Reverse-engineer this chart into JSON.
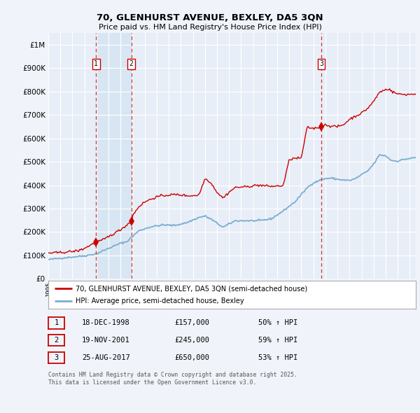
{
  "title_line1": "70, GLENHURST AVENUE, BEXLEY, DA5 3QN",
  "title_line2": "Price paid vs. HM Land Registry's House Price Index (HPI)",
  "legend_label_red": "70, GLENHURST AVENUE, BEXLEY, DA5 3QN (semi-detached house)",
  "legend_label_blue": "HPI: Average price, semi-detached house, Bexley",
  "sale_label1": "1",
  "sale_date1": "18-DEC-1998",
  "sale_price1": "£157,000",
  "sale_hpi1": "50% ↑ HPI",
  "sale_label2": "2",
  "sale_date2": "19-NOV-2001",
  "sale_price2": "£245,000",
  "sale_hpi2": "59% ↑ HPI",
  "sale_label3": "3",
  "sale_date3": "25-AUG-2017",
  "sale_price3": "£650,000",
  "sale_hpi3": "53% ↑ HPI",
  "footnote_line1": "Contains HM Land Registry data © Crown copyright and database right 2025.",
  "footnote_line2": "This data is licensed under the Open Government Licence v3.0.",
  "background_color": "#f0f4fa",
  "plot_bg_color": "#e8eef7",
  "highlight_bg_color": "#d8e6f3",
  "red_color": "#cc0000",
  "blue_color": "#7aaed0",
  "grid_color": "#ffffff",
  "dashed_line_color": "#cc3333",
  "sale1_x": 1998.96,
  "sale2_x": 2001.89,
  "sale3_x": 2017.65,
  "sale1_price": 157000,
  "sale2_price": 245000,
  "sale3_price": 650000,
  "ylim_min": 0,
  "ylim_max": 1050000,
  "xlim_min": 1995.0,
  "xlim_max": 2025.5
}
